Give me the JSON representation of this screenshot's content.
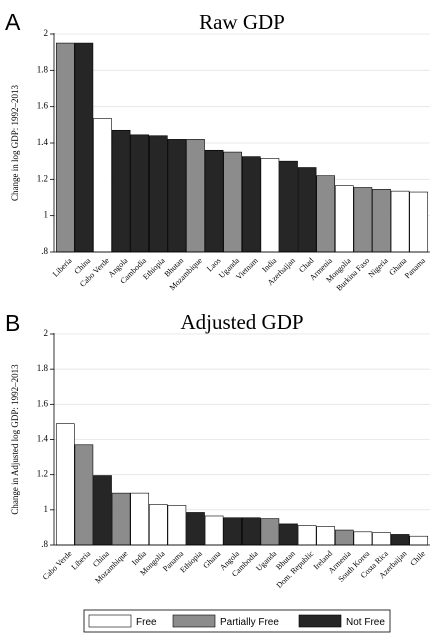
{
  "legend": {
    "items": [
      {
        "label": "Free",
        "color": "#ffffff"
      },
      {
        "label": "Partially Free",
        "color": "#8c8c8c"
      },
      {
        "label": "Not Free",
        "color": "#262626"
      }
    ]
  },
  "chart_data": [
    {
      "type": "bar",
      "panel_letter": "A",
      "title": "Raw GDP",
      "xlabel": "",
      "ylabel": "Change in log GDP: 1992–2013",
      "ylim": [
        0.8,
        2.0
      ],
      "yticks": [
        ".8",
        "1",
        "1.2",
        "1.4",
        "1.6",
        "1.8",
        "2"
      ],
      "ytick_values": [
        0.8,
        1.0,
        1.2,
        1.4,
        1.6,
        1.8,
        2.0
      ],
      "grid": true,
      "categories": [
        "Liberia",
        "China",
        "Cabo Verde",
        "Angola",
        "Cambodia",
        "Ethiopia",
        "Bhutan",
        "Mozambique",
        "Laos",
        "Uganda",
        "Vietnam",
        "India",
        "Azerbaijan",
        "Chad",
        "Armenia",
        "Mongolia",
        "Burkina Faso",
        "Nigeria",
        "Ghana",
        "Panama"
      ],
      "values": [
        1.95,
        1.95,
        1.535,
        1.47,
        1.445,
        1.44,
        1.42,
        1.42,
        1.36,
        1.35,
        1.325,
        1.315,
        1.3,
        1.265,
        1.22,
        1.165,
        1.155,
        1.145,
        1.135,
        1.13
      ],
      "status": [
        "Partially Free",
        "Not Free",
        "Free",
        "Not Free",
        "Not Free",
        "Not Free",
        "Not Free",
        "Partially Free",
        "Not Free",
        "Partially Free",
        "Not Free",
        "Free",
        "Not Free",
        "Not Free",
        "Partially Free",
        "Free",
        "Partially Free",
        "Partially Free",
        "Free",
        "Free"
      ]
    },
    {
      "type": "bar",
      "panel_letter": "B",
      "title": "Adjusted GDP",
      "xlabel": "",
      "ylabel": "Change in Adjusted log GDP: 1992–2013",
      "ylim": [
        0.8,
        2.0
      ],
      "yticks": [
        ".8",
        "1",
        "1.2",
        "1.4",
        "1.6",
        "1.8",
        "2"
      ],
      "ytick_values": [
        0.8,
        1.0,
        1.2,
        1.4,
        1.6,
        1.8,
        2.0
      ],
      "grid": true,
      "categories": [
        "Cabo Verde",
        "Liberia",
        "China",
        "Mozambique",
        "India",
        "Mongolia",
        "Panama",
        "Ethiopia",
        "Ghana",
        "Angola",
        "Cambodia",
        "Uganda",
        "Bhutan",
        "Dom. Republic",
        "Ireland",
        "Armenia",
        "South Korea",
        "Costa Rica",
        "Azerbaijan",
        "Chile"
      ],
      "values": [
        1.49,
        1.37,
        1.195,
        1.095,
        1.095,
        1.03,
        1.025,
        0.985,
        0.965,
        0.955,
        0.955,
        0.95,
        0.92,
        0.91,
        0.905,
        0.885,
        0.875,
        0.87,
        0.86,
        0.85
      ],
      "status": [
        "Free",
        "Partially Free",
        "Not Free",
        "Partially Free",
        "Free",
        "Free",
        "Free",
        "Not Free",
        "Free",
        "Not Free",
        "Not Free",
        "Partially Free",
        "Not Free",
        "Free",
        "Free",
        "Partially Free",
        "Free",
        "Free",
        "Not Free",
        "Free"
      ]
    }
  ]
}
